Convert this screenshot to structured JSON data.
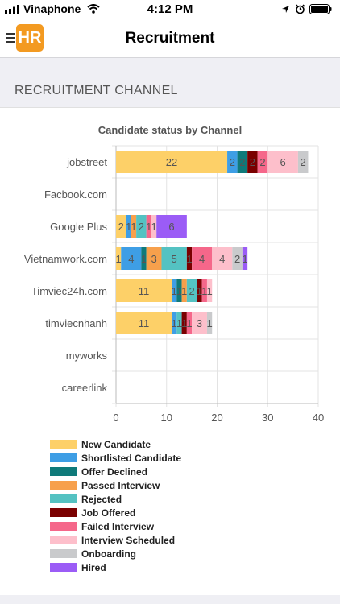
{
  "status_bar": {
    "carrier": "Vinaphone",
    "time": "4:12 PM"
  },
  "header": {
    "title": "Recruitment",
    "logo_text": "HR"
  },
  "section": {
    "title": "RECRUITMENT CHANNEL"
  },
  "chart_data": {
    "type": "bar",
    "orientation": "horizontal",
    "stacked": true,
    "title": "Candidate status by Channel",
    "categories": [
      "jobstreet",
      "Facbook.com",
      "Google Plus",
      "Vietnamwork.com",
      "Timviec24h.com",
      "timviecnhanh",
      "myworks",
      "careerlink"
    ],
    "xlim": [
      0,
      40
    ],
    "xticks": [
      0,
      10,
      20,
      30,
      40
    ],
    "grid": true,
    "legend_position": "bottom",
    "series": [
      {
        "name": "New Candidate",
        "color": "#fdd068",
        "values": [
          22,
          0,
          2,
          1,
          11,
          11,
          0,
          0
        ]
      },
      {
        "name": "Shortlisted Candidate",
        "color": "#3e9ee5",
        "values": [
          2,
          0,
          1,
          4,
          1,
          1,
          0,
          0
        ]
      },
      {
        "name": "Offer Declined",
        "color": "#0f7a7a",
        "values": [
          2,
          0,
          0,
          1,
          1,
          0,
          0,
          0
        ]
      },
      {
        "name": "Passed Interview",
        "color": "#f7a04c",
        "values": [
          0,
          0,
          1,
          3,
          1,
          0,
          0,
          0
        ]
      },
      {
        "name": "Rejected",
        "color": "#54c2c2",
        "values": [
          0,
          0,
          2,
          5,
          2,
          1,
          0,
          0
        ]
      },
      {
        "name": "Job Offered",
        "color": "#7a0000",
        "values": [
          2,
          0,
          0,
          1,
          1,
          1,
          0,
          0
        ]
      },
      {
        "name": "Failed Interview",
        "color": "#f5678a",
        "values": [
          2,
          0,
          1,
          4,
          1,
          1,
          0,
          0
        ]
      },
      {
        "name": "Interview Scheduled",
        "color": "#fdbfcb",
        "values": [
          6,
          0,
          1,
          4,
          1,
          3,
          0,
          0
        ]
      },
      {
        "name": "Onboarding",
        "color": "#c9cacc",
        "values": [
          2,
          0,
          0,
          2,
          0,
          1,
          0,
          0
        ]
      },
      {
        "name": "Hired",
        "color": "#9b5cf6",
        "values": [
          0,
          0,
          6,
          1,
          0,
          0,
          0,
          0
        ]
      }
    ]
  }
}
